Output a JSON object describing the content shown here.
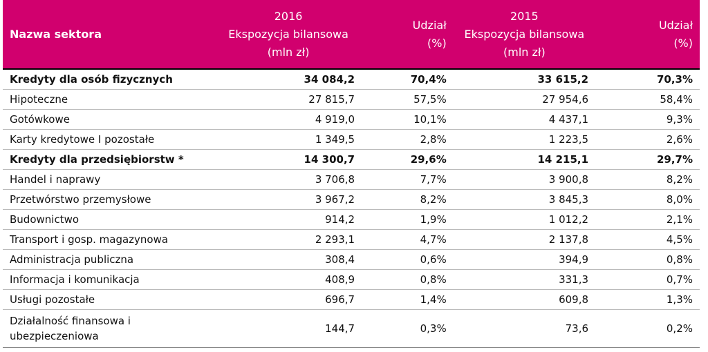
{
  "table": {
    "columns": [
      [
        "Nazwa sektora"
      ],
      [
        "2016",
        "Ekspozycja bilansowa",
        "(mln zł)"
      ],
      [
        "Udział",
        "(%)"
      ],
      [
        "2015",
        "Ekspozycja bilansowa",
        "(mln zł)"
      ],
      [
        "Udział",
        "(%)"
      ]
    ],
    "rows": [
      [
        "Kredyty dla osób fizycznych",
        "34 084,2",
        "70,4%",
        "33 615,2",
        "70,3%"
      ],
      [
        "Hipoteczne",
        "27 815,7",
        "57,5%",
        "27 954,6",
        "58,4%"
      ],
      [
        "Gotówkowe",
        "4 919,0",
        "10,1%",
        "4 437,1",
        "9,3%"
      ],
      [
        "Karty kredytowe I pozostałe",
        "1 349,5",
        "2,8%",
        "1 223,5",
        "2,6%"
      ],
      [
        "Kredyty dla przedsiębiorstw *",
        "14 300,7",
        "29,6%",
        "14 215,1",
        "29,7%"
      ],
      [
        "Handel i naprawy",
        "3 706,8",
        "7,7%",
        "3 900,8",
        "8,2%"
      ],
      [
        "Przetwórstwo przemysłowe",
        "3 967,2",
        "8,2%",
        "3 845,3",
        "8,0%"
      ],
      [
        "Budownictwo",
        "914,2",
        "1,9%",
        "1 012,2",
        "2,1%"
      ],
      [
        "Transport i gosp. magazynowa",
        "2 293,1",
        "4,7%",
        "2 137,8",
        "4,5%"
      ],
      [
        "Administracja publiczna",
        "308,4",
        "0,6%",
        "394,9",
        "0,8%"
      ],
      [
        "Informacja i komunikacja",
        "408,9",
        "0,8%",
        "331,3",
        "0,7%"
      ],
      [
        "Usługi pozostałe",
        "696,7",
        "1,4%",
        "609,8",
        "1,3%"
      ],
      [
        "Działalność finansowa i ubezpieczeniowa",
        "144,7",
        "0,3%",
        "73,6",
        "0,2%"
      ]
    ]
  }
}
